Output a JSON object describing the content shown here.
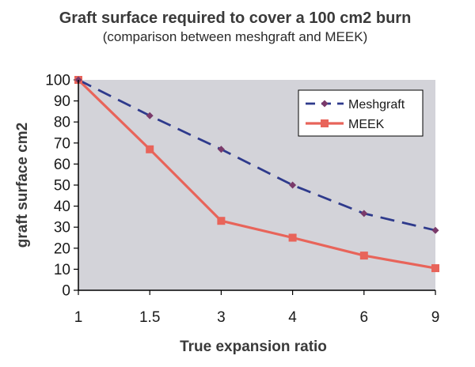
{
  "chart_data": {
    "type": "line",
    "title": "Graft surface required to cover a 100 cm2 burn",
    "subtitle": "(comparison between meshgraft and MEEK)",
    "xlabel": "True expansion ratio",
    "ylabel": "graft surface cm2",
    "categories": [
      "1",
      "1.5",
      "3",
      "4",
      "6",
      "9"
    ],
    "ylim": [
      0,
      100
    ],
    "yticks": [
      0,
      10,
      20,
      30,
      40,
      50,
      60,
      70,
      80,
      90,
      100
    ],
    "grid": false,
    "legend_position": "top-right",
    "series": [
      {
        "name": "Meshgraft",
        "values": [
          100,
          83,
          67,
          50,
          36.5,
          28.5
        ],
        "color": "#2e3a8c",
        "style": "dashed",
        "marker": "diamond",
        "marker_color": "#7a3a6a"
      },
      {
        "name": "MEEK",
        "values": [
          100,
          67,
          33,
          25,
          16.5,
          10.5
        ],
        "color": "#e8645a",
        "style": "solid",
        "marker": "square",
        "marker_color": "#e8645a"
      }
    ],
    "plot_background": "#d3d3d9"
  }
}
